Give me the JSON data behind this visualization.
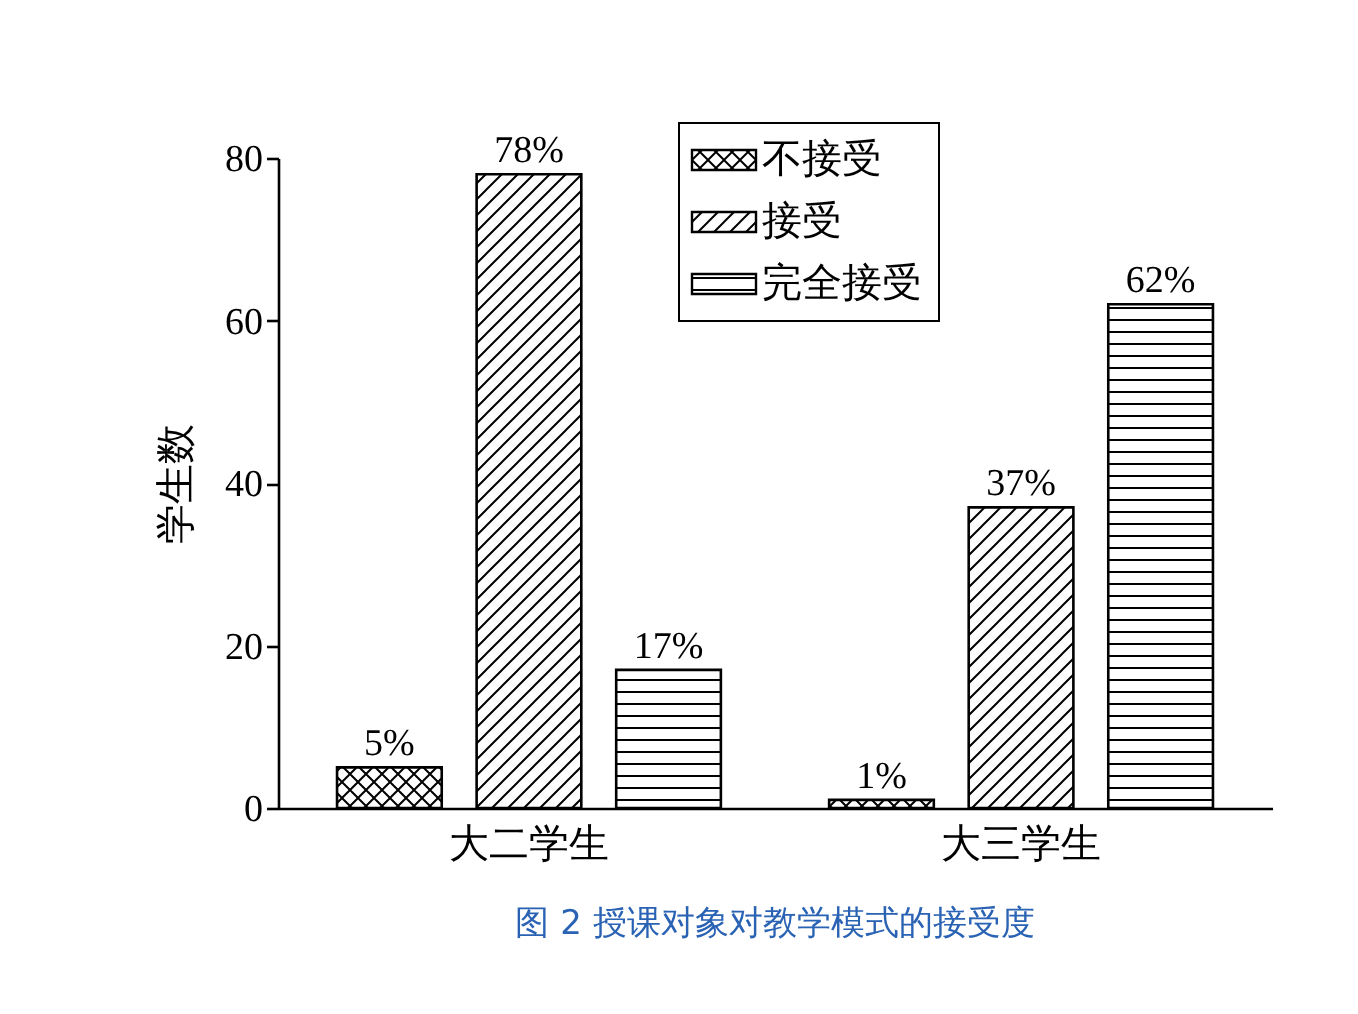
{
  "chart_data": {
    "type": "bar",
    "title": "图 2 授课对象对教学模式的接受度",
    "ylabel": "学生数",
    "categories": [
      "大二学生",
      "大三学生"
    ],
    "series": [
      {
        "name": "不接受",
        "color": "#000000",
        "values": [
          5,
          1
        ],
        "value_labels": [
          "5%",
          "1%"
        ]
      },
      {
        "name": "接受",
        "color": "#000000",
        "values": [
          78,
          37
        ],
        "value_labels": [
          "78%",
          "37%"
        ]
      },
      {
        "name": "完全接受",
        "color": "#000000",
        "values": [
          17,
          62
        ],
        "value_labels": [
          "17%",
          "62%"
        ]
      }
    ],
    "ylim": [
      0,
      80
    ],
    "yticks": [
      0,
      20,
      40,
      60,
      80
    ],
    "grid": false,
    "legend": "top right"
  }
}
